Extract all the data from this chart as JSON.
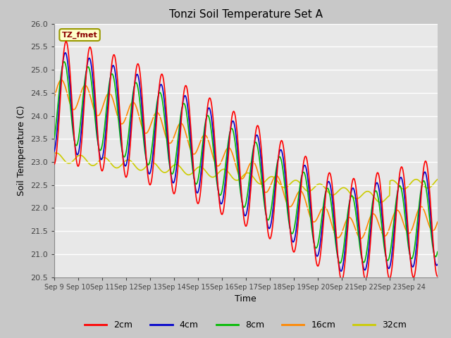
{
  "title": "Tonzi Soil Temperature Set A",
  "xlabel": "Time",
  "ylabel": "Soil Temperature (C)",
  "ylim": [
    20.5,
    26.0
  ],
  "annotation": "TZ_fmet",
  "bg_color": "#c8c8c8",
  "plot_bg_color": "#e8e8e8",
  "line_colors": {
    "2cm": "#ff0000",
    "4cm": "#0000cc",
    "8cm": "#00bb00",
    "16cm": "#ff8800",
    "32cm": "#cccc00"
  },
  "line_width": 1.2,
  "xtick_labels": [
    "Sep 9",
    "Sep 10",
    "Sep 11",
    "Sep 12",
    "Sep 13",
    "Sep 14",
    "Sep 15",
    "Sep 16",
    "Sep 17",
    "Sep 18",
    "Sep 19",
    "Sep 20",
    "Sep 21",
    "Sep 22",
    "Sep 23",
    "Sep 24"
  ],
  "ytick_values": [
    20.5,
    21.0,
    21.5,
    22.0,
    22.5,
    23.0,
    23.5,
    24.0,
    24.5,
    25.0,
    25.5,
    26.0
  ],
  "legend_labels": [
    "2cm",
    "4cm",
    "8cm",
    "16cm",
    "32cm"
  ],
  "n_days": 16,
  "pts_per_day": 48
}
